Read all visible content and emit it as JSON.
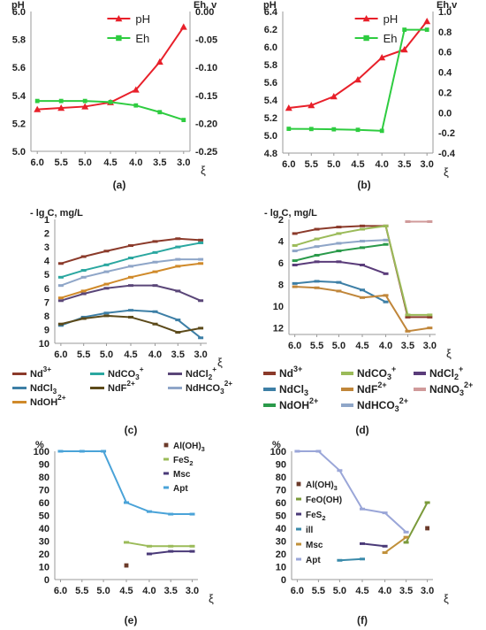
{
  "chart_data": [
    {
      "panel": "(a)",
      "type": "line",
      "y_left_label": "pH",
      "y_right_label": "Eh, v",
      "xlabel": "ξ",
      "x": [
        6.0,
        5.5,
        5.0,
        4.5,
        4.0,
        3.5,
        3.0
      ],
      "x_ticks": [
        "6.0",
        "5.5",
        "5.0",
        "4.5",
        "4.0",
        "3.5",
        "3.0"
      ],
      "y_left_ticks": [
        "5.0",
        "5.2",
        "5.4",
        "5.6",
        "5.8",
        "6.0"
      ],
      "y_right_ticks": [
        "0.00",
        "-0.05",
        "-0.10",
        "-0.15",
        "-0.20",
        "-0.25"
      ],
      "ylim_left": [
        5.0,
        6.0
      ],
      "ylim_right": [
        -0.25,
        0.0
      ],
      "legend_position": "top-center",
      "series": [
        {
          "name": "pH",
          "axis": "left",
          "color": "#e8202a",
          "marker": "triangle",
          "values": [
            5.3,
            5.31,
            5.32,
            5.35,
            5.44,
            5.64,
            5.89
          ]
        },
        {
          "name": "Eh",
          "axis": "right",
          "color": "#2ecc40",
          "marker": "square",
          "values": [
            -0.16,
            -0.16,
            -0.16,
            -0.162,
            -0.168,
            -0.18,
            -0.194
          ]
        }
      ]
    },
    {
      "panel": "(b)",
      "type": "line",
      "y_left_label": "pH",
      "y_right_label": "Eh,v",
      "xlabel": "ξ",
      "x": [
        6.0,
        5.5,
        5.0,
        4.5,
        4.0,
        3.5,
        3.0
      ],
      "x_ticks": [
        "6.0",
        "5.5",
        "5.0",
        "4.5",
        "4.0",
        "3.5",
        "3.0"
      ],
      "y_left_ticks": [
        "4.8",
        "5.0",
        "5.2",
        "5.4",
        "5.6",
        "5.8",
        "6.0",
        "6.2",
        "6.4"
      ],
      "y_right_ticks": [
        "-0.4",
        "-0.2",
        "0.0",
        "0.2",
        "0.4",
        "0.6",
        "0.8",
        "1.0"
      ],
      "ylim_left": [
        4.8,
        6.4
      ],
      "ylim_right": [
        -0.4,
        1.0
      ],
      "legend_position": "top-center",
      "series": [
        {
          "name": "pH",
          "axis": "left",
          "color": "#e8202a",
          "marker": "triangle",
          "values": [
            5.31,
            5.34,
            5.44,
            5.63,
            5.88,
            5.97,
            6.29
          ]
        },
        {
          "name": "Eh",
          "axis": "right",
          "color": "#2ecc40",
          "marker": "square",
          "values": [
            -0.16,
            -0.162,
            -0.165,
            -0.17,
            -0.18,
            0.82,
            0.82
          ]
        }
      ]
    },
    {
      "panel": "(c)",
      "type": "line",
      "ylabel": "- lg C, mg/L",
      "xlabel": "ξ",
      "x": [
        6.0,
        5.5,
        5.0,
        4.5,
        4.0,
        3.5,
        3.0
      ],
      "x_ticks": [
        "6.0",
        "5.5",
        "5.0",
        "4.5",
        "4.0",
        "3.5",
        "3.0"
      ],
      "y_ticks": [
        "1",
        "2",
        "3",
        "4",
        "5",
        "6",
        "7",
        "8",
        "9",
        "10"
      ],
      "ylim": [
        1,
        10
      ],
      "y_inverted": true,
      "legend_position": "bottom",
      "series": [
        {
          "name": "Nd",
          "sup": "3+",
          "color": "#8b3a2a",
          "marker": "dash",
          "values": [
            4.2,
            3.7,
            3.3,
            2.9,
            2.6,
            2.4,
            2.5
          ]
        },
        {
          "name": "NdCO",
          "sub": "3",
          "sup": "+",
          "color": "#2aa7a0",
          "marker": "dash",
          "values": [
            5.2,
            4.7,
            4.3,
            3.8,
            3.4,
            3.0,
            2.7
          ]
        },
        {
          "name": "NdCl",
          "sub": "2",
          "sup": "+",
          "color": "#5a4678",
          "marker": "dash",
          "values": [
            6.9,
            6.4,
            6.0,
            5.8,
            5.8,
            6.2,
            6.9
          ]
        },
        {
          "name": "NdCl",
          "sub": "3",
          "color": "#3d7fa6",
          "marker": "dash",
          "values": [
            8.7,
            8.1,
            7.8,
            7.6,
            7.7,
            8.3,
            9.6
          ]
        },
        {
          "name": "NdF",
          "sup": "2+",
          "color": "#5c4a1a",
          "marker": "dash",
          "values": [
            8.6,
            8.2,
            8.0,
            8.1,
            8.6,
            9.2,
            8.9
          ]
        },
        {
          "name": "NdHCO",
          "sub": "3",
          "sup": "2+",
          "color": "#8fa6c8",
          "marker": "dash",
          "values": [
            5.8,
            5.2,
            4.8,
            4.4,
            4.1,
            3.9,
            3.9
          ]
        },
        {
          "name": "NdOH",
          "sup": "2+",
          "color": "#d08a2a",
          "marker": "dash",
          "values": [
            6.7,
            6.2,
            5.7,
            5.2,
            4.8,
            4.4,
            4.2
          ]
        }
      ]
    },
    {
      "panel": "(d)",
      "type": "line",
      "ylabel": "- lg C, mg/L",
      "xlabel": "ξ",
      "x": [
        6.0,
        5.5,
        5.0,
        4.5,
        4.0,
        3.5,
        3.0
      ],
      "x_ticks": [
        "6.0",
        "5.5",
        "5.0",
        "4.5",
        "4.0",
        "3.5",
        "3.0"
      ],
      "y_ticks": [
        "2",
        "4",
        "6",
        "8",
        "10",
        "12"
      ],
      "ylim": [
        2,
        12.6
      ],
      "y_inverted": true,
      "legend_position": "bottom",
      "series": [
        {
          "name": "Nd",
          "sup": "3+",
          "color": "#8b3a2a",
          "marker": "dash",
          "values": [
            3.3,
            2.9,
            2.7,
            2.6,
            2.6,
            11.0,
            11.0
          ]
        },
        {
          "name": "NdCO",
          "sub": "3",
          "sup": "+",
          "color": "#9bbb59",
          "marker": "dash",
          "values": [
            4.4,
            3.8,
            3.3,
            2.9,
            2.6,
            10.8,
            10.8
          ]
        },
        {
          "name": "NdCl",
          "sub": "2",
          "sup": "+",
          "color": "#5a3c7a",
          "marker": "dash",
          "values": [
            6.2,
            5.9,
            5.9,
            6.2,
            7.0,
            null,
            null
          ]
        },
        {
          "name": "NdCl",
          "sub": "3",
          "color": "#3d7fa6",
          "marker": "dash",
          "values": [
            7.9,
            7.7,
            7.8,
            8.5,
            9.6,
            null,
            null
          ]
        },
        {
          "name": "NdF",
          "sup": "2+",
          "color": "#c0863a",
          "marker": "dash",
          "values": [
            8.2,
            8.3,
            8.6,
            9.2,
            9.0,
            12.3,
            12.0
          ]
        },
        {
          "name": "NdNO",
          "sub": "3",
          "sup": "2+",
          "color": "#d09a9a",
          "marker": "dash",
          "values": [
            null,
            null,
            null,
            null,
            null,
            2.2,
            2.2
          ]
        },
        {
          "name": "NdOH",
          "sup": "2+",
          "color": "#2a9a4a",
          "marker": "dash",
          "values": [
            5.8,
            5.3,
            4.9,
            4.6,
            4.3,
            null,
            null
          ]
        },
        {
          "name": "NdHCO",
          "sub": "3",
          "sup": "2+",
          "color": "#8fa6c8",
          "marker": "dash",
          "values": [
            4.9,
            4.5,
            4.2,
            4.0,
            3.9,
            null,
            null
          ]
        }
      ]
    },
    {
      "panel": "(e)",
      "type": "line",
      "ylabel": "%",
      "xlabel": "ξ",
      "x": [
        6.0,
        5.5,
        5.0,
        4.5,
        4.0,
        3.5,
        3.0
      ],
      "x_ticks": [
        "6.0",
        "5.5",
        "5.0",
        "4.5",
        "4.0",
        "3.5",
        "3.0"
      ],
      "y_ticks": [
        "0",
        "10",
        "20",
        "30",
        "40",
        "50",
        "60",
        "70",
        "80",
        "90",
        "100"
      ],
      "ylim": [
        0,
        100
      ],
      "legend_position": "top-right",
      "series": [
        {
          "name": "Al(OH)",
          "sub": "3",
          "color": "#6b3a2a",
          "marker": "square",
          "values": [
            null,
            null,
            null,
            11,
            null,
            null,
            null
          ]
        },
        {
          "name": "FeS",
          "sub": "2",
          "color": "#9bbb59",
          "marker": "dash",
          "values": [
            null,
            null,
            null,
            29,
            26,
            26,
            26
          ]
        },
        {
          "name": "Msc",
          "color": "#4a3a78",
          "marker": "dash",
          "values": [
            null,
            null,
            null,
            null,
            20,
            22,
            22
          ]
        },
        {
          "name": "Apt",
          "color": "#4aa3d8",
          "marker": "dash",
          "values": [
            100,
            100,
            100,
            60,
            53,
            51,
            51
          ]
        }
      ]
    },
    {
      "panel": "(f)",
      "type": "line",
      "ylabel": "%",
      "xlabel": "ξ",
      "x": [
        6.0,
        5.5,
        5.0,
        4.5,
        4.0,
        3.5,
        3.0
      ],
      "x_ticks": [
        "6.0",
        "5.5",
        "5.0",
        "4.5",
        "4.0",
        "3.5",
        "3.0"
      ],
      "y_ticks": [
        "0",
        "10",
        "20",
        "30",
        "40",
        "50",
        "60",
        "70",
        "80",
        "90",
        "100"
      ],
      "ylim": [
        0,
        100
      ],
      "legend_position": "left",
      "series": [
        {
          "name": "Al(OH)",
          "sub": "3",
          "color": "#6b3a2a",
          "marker": "square",
          "values": [
            null,
            null,
            null,
            null,
            null,
            null,
            40
          ]
        },
        {
          "name": "FeO(OH)",
          "color": "#7a9a3a",
          "marker": "dash",
          "values": [
            null,
            null,
            null,
            null,
            null,
            29,
            60
          ]
        },
        {
          "name": "FeS",
          "sub": "2",
          "color": "#4a3a78",
          "marker": "dash",
          "values": [
            null,
            null,
            null,
            28,
            26,
            null,
            null
          ]
        },
        {
          "name": "ill",
          "color": "#3a8aaa",
          "marker": "dash",
          "values": [
            null,
            null,
            15,
            16,
            null,
            null,
            null
          ]
        },
        {
          "name": "Msc",
          "color": "#c0903a",
          "marker": "dash",
          "values": [
            null,
            null,
            null,
            null,
            21,
            33,
            null
          ]
        },
        {
          "name": "Apt",
          "color": "#9aa6d8",
          "marker": "dash",
          "values": [
            100,
            100,
            85,
            55,
            52,
            37,
            null
          ]
        }
      ]
    }
  ]
}
